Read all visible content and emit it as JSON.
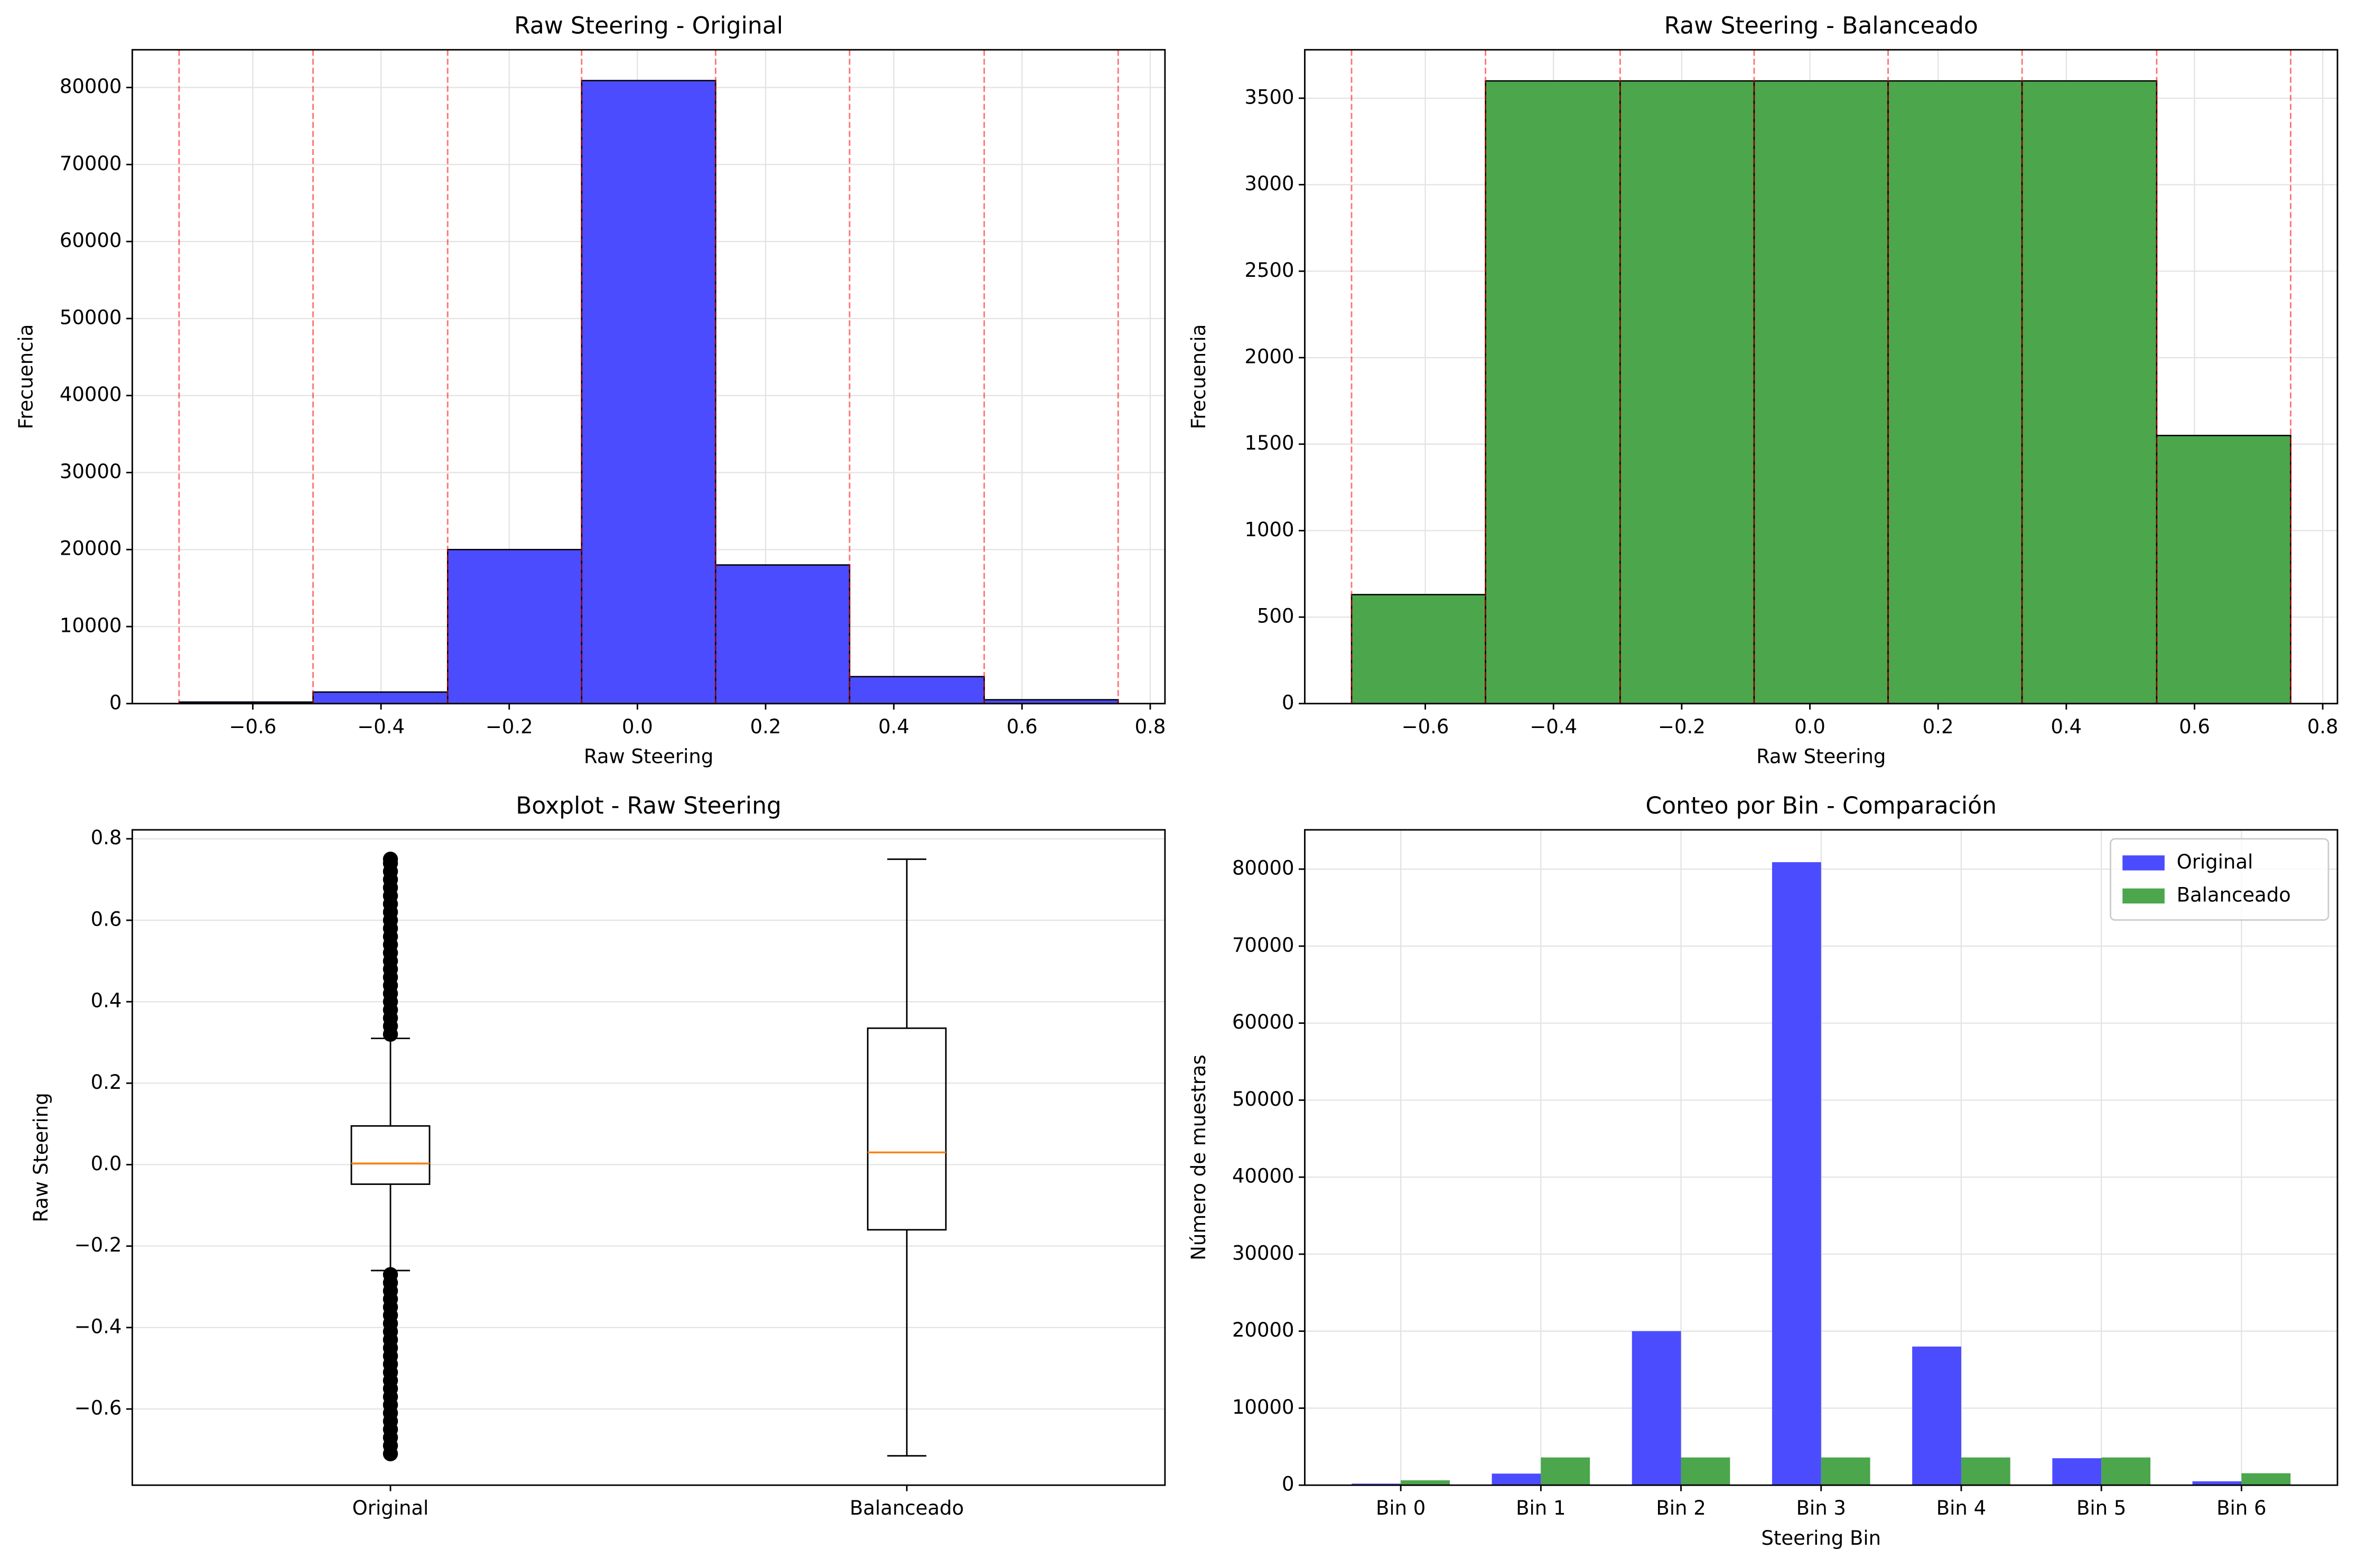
{
  "chart_data": [
    {
      "type": "histogram",
      "title": "Raw Steering - Original",
      "x_label": "Raw Steering",
      "y_label": "Frecuencia",
      "bins": [
        -0.715,
        -0.506,
        -0.296,
        -0.087,
        0.122,
        0.331,
        0.541,
        0.75
      ],
      "values": [
        200,
        1500,
        20000,
        80900,
        18000,
        3500,
        500
      ],
      "color": "#4c4cff",
      "edge_color": "#000000",
      "bin_edge_line_color": "#ff0000",
      "xlim": [
        -0.788,
        0.823
      ],
      "xticks": [
        {
          "value": -0.6,
          "label": "−0.6"
        },
        {
          "value": -0.4,
          "label": "−0.4"
        },
        {
          "value": -0.2,
          "label": "−0.2"
        },
        {
          "value": 0,
          "label": "0.0"
        },
        0.2,
        0.4,
        0.6,
        0.8
      ],
      "ylim": [
        0,
        84900
      ],
      "yticks": [
        0,
        10000,
        20000,
        30000,
        40000,
        50000,
        60000,
        70000,
        80000
      ],
      "grid": "both"
    },
    {
      "type": "histogram",
      "title": "Raw Steering - Balanceado",
      "x_label": "Raw Steering",
      "y_label": "Frecuencia",
      "bins": [
        -0.715,
        -0.506,
        -0.296,
        -0.087,
        0.122,
        0.331,
        0.541,
        0.75
      ],
      "values": [
        630,
        3600,
        3600,
        3600,
        3600,
        3600,
        1550
      ],
      "color": "#4ca64c",
      "edge_color": "#000000",
      "bin_edge_line_color": "#ff0000",
      "xlim": [
        -0.788,
        0.823
      ],
      "xticks": [
        {
          "value": -0.6,
          "label": "−0.6"
        },
        {
          "value": -0.4,
          "label": "−0.4"
        },
        {
          "value": -0.2,
          "label": "−0.2"
        },
        {
          "value": 0,
          "label": "0.0"
        },
        0.2,
        0.4,
        0.6,
        0.8
      ],
      "ylim": [
        0,
        3780
      ],
      "yticks": [
        0,
        500,
        1000,
        1500,
        2000,
        2500,
        3000,
        3500
      ],
      "grid": "both"
    },
    {
      "type": "boxplot",
      "title": "Boxplot - Raw Steering",
      "y_label": "Raw Steering",
      "categories": [
        "Original",
        "Balanceado"
      ],
      "boxes": [
        {
          "whislo": -0.26,
          "q1": -0.048,
          "med": 0.003,
          "q3": 0.095,
          "whishi": 0.31,
          "fliers": [
            0.32,
            0.34,
            0.36,
            0.38,
            0.4,
            0.42,
            0.44,
            0.46,
            0.48,
            0.5,
            0.52,
            0.54,
            0.56,
            0.58,
            0.6,
            0.62,
            0.64,
            0.66,
            0.68,
            0.7,
            0.72,
            0.74,
            0.75,
            -0.27,
            -0.29,
            -0.31,
            -0.33,
            -0.35,
            -0.37,
            -0.39,
            -0.41,
            -0.43,
            -0.45,
            -0.47,
            -0.49,
            -0.51,
            -0.53,
            -0.55,
            -0.57,
            -0.59,
            -0.61,
            -0.63,
            -0.65,
            -0.67,
            -0.69,
            -0.71
          ]
        },
        {
          "whislo": -0.715,
          "q1": -0.16,
          "med": 0.03,
          "q3": 0.335,
          "whishi": 0.75,
          "fliers": []
        }
      ],
      "box_color": "#000000",
      "median_color": "#ff7f0e",
      "ylim": [
        -0.787,
        0.822
      ],
      "yticks": [
        {
          "value": -0.6,
          "label": "−0.6"
        },
        {
          "value": -0.4,
          "label": "−0.4"
        },
        {
          "value": -0.2,
          "label": "−0.2"
        },
        {
          "value": 0,
          "label": "0.0"
        },
        0.2,
        0.4,
        0.6,
        0.8
      ],
      "grid": "y"
    },
    {
      "type": "grouped_bar",
      "title": "Conteo por Bin - Comparación",
      "x_label": "Steering Bin",
      "y_label": "Número de muestras",
      "categories": [
        "Bin 0",
        "Bin 1",
        "Bin 2",
        "Bin 3",
        "Bin 4",
        "Bin 5",
        "Bin 6"
      ],
      "series": [
        {
          "name": "Original",
          "color": "#4c4cff",
          "values": [
            200,
            1500,
            20000,
            80900,
            18000,
            3500,
            500
          ]
        },
        {
          "name": "Balanceado",
          "color": "#4ca64c",
          "values": [
            630,
            3600,
            3600,
            3600,
            3600,
            3600,
            1550
          ]
        }
      ],
      "ylim": [
        0,
        85100
      ],
      "yticks": [
        0,
        10000,
        20000,
        30000,
        40000,
        50000,
        60000,
        70000,
        80000
      ],
      "grid": "both",
      "legend": "upper right"
    }
  ]
}
